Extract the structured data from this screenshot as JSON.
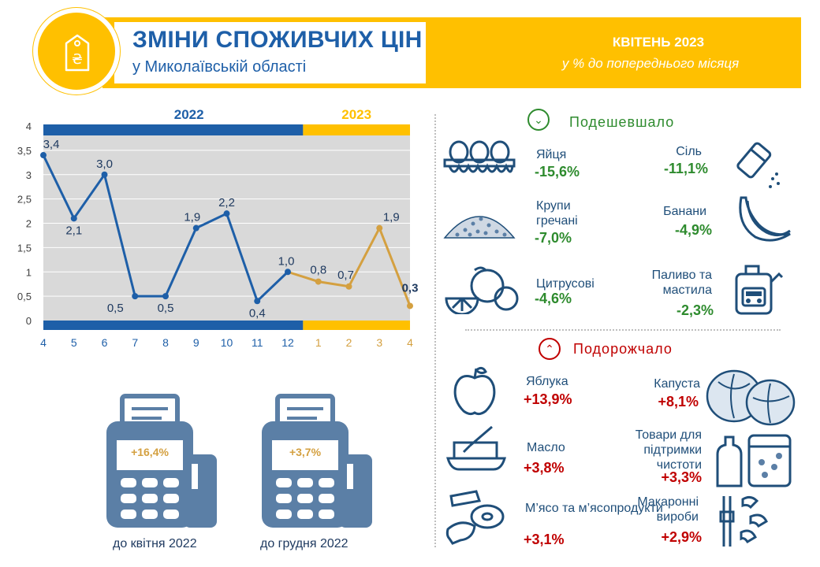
{
  "header": {
    "title": "ЗМІНИ СПОЖИВЧИХ ЦІН",
    "subtitle": "у Миколаївській області",
    "period": "КВІТЕНЬ 2023",
    "period_sub": "у % до попереднього місяця",
    "logo_icon": "price-tag-hryvnia-icon",
    "logo_glyph": "₴"
  },
  "colors": {
    "blue": "#1e5fa8",
    "orange": "#d4a040",
    "yellow": "#ffc000",
    "green": "#2e8b2e",
    "red": "#c00000"
  },
  "chart_data": {
    "type": "line",
    "year_labels": [
      "2022",
      "2023"
    ],
    "categories": [
      "4",
      "5",
      "6",
      "7",
      "8",
      "9",
      "10",
      "11",
      "12",
      "1",
      "2",
      "3",
      "4"
    ],
    "values": [
      3.4,
      2.1,
      3.0,
      0.5,
      0.5,
      1.9,
      2.2,
      0.4,
      1.0,
      0.8,
      0.7,
      1.9,
      0.3
    ],
    "value_labels": [
      "3,4",
      "2,1",
      "3,0",
      "0,5",
      "0,5",
      "1,9",
      "2,2",
      "0,4",
      "1,0",
      "0,8",
      "0,7",
      "1,9",
      "0,3"
    ],
    "series_years": [
      "2022",
      "2022",
      "2022",
      "2022",
      "2022",
      "2022",
      "2022",
      "2022",
      "2022",
      "2023",
      "2023",
      "2023",
      "2023"
    ],
    "yticks": [
      "0",
      "0,5",
      "1",
      "1,5",
      "2",
      "2,5",
      "3",
      "3,5",
      "4"
    ],
    "ylim": [
      0,
      4
    ],
    "grid": true
  },
  "cheaper": {
    "title": "Подешевшало",
    "icon": "chevron-down-icon",
    "items": [
      {
        "label": "Яйця",
        "value": "-15,6%",
        "icon": "eggs-icon"
      },
      {
        "label": "Сіль",
        "value": "-11,1%",
        "icon": "salt-shaker-icon"
      },
      {
        "label": "Крупи гречані",
        "value": "-7,0%",
        "icon": "buckwheat-icon"
      },
      {
        "label": "Банани",
        "value": "-4,9%",
        "icon": "bananas-icon"
      },
      {
        "label": "Цитрусові",
        "value": "-4,6%",
        "icon": "citrus-icon"
      },
      {
        "label": "Паливо та мастила",
        "value": "-2,3%",
        "icon": "fuel-canister-icon"
      }
    ]
  },
  "pricier": {
    "title": "Подорожчало",
    "icon": "chevron-up-icon",
    "items": [
      {
        "label": "Яблука",
        "value": "+13,9%",
        "icon": "apple-icon"
      },
      {
        "label": "Капуста",
        "value": "+8,1%",
        "icon": "cabbage-icon"
      },
      {
        "label": "Масло",
        "value": "+3,8%",
        "icon": "butter-icon"
      },
      {
        "label": "Товари для підтримки чистоти",
        "value": "+3,3%",
        "icon": "cleaning-products-icon"
      },
      {
        "label": "М’ясо та м’ясопродукти",
        "value": "+3,1%",
        "icon": "meat-icon"
      },
      {
        "label": "Макаронні вироби",
        "value": "+2,9%",
        "icon": "pasta-icon"
      }
    ]
  },
  "terminals": [
    {
      "value": "+16,4%",
      "caption": "до квітня 2022",
      "icon": "cash-register-icon"
    },
    {
      "value": "+3,7%",
      "caption": "до грудня 2022",
      "icon": "cash-register-icon"
    }
  ]
}
